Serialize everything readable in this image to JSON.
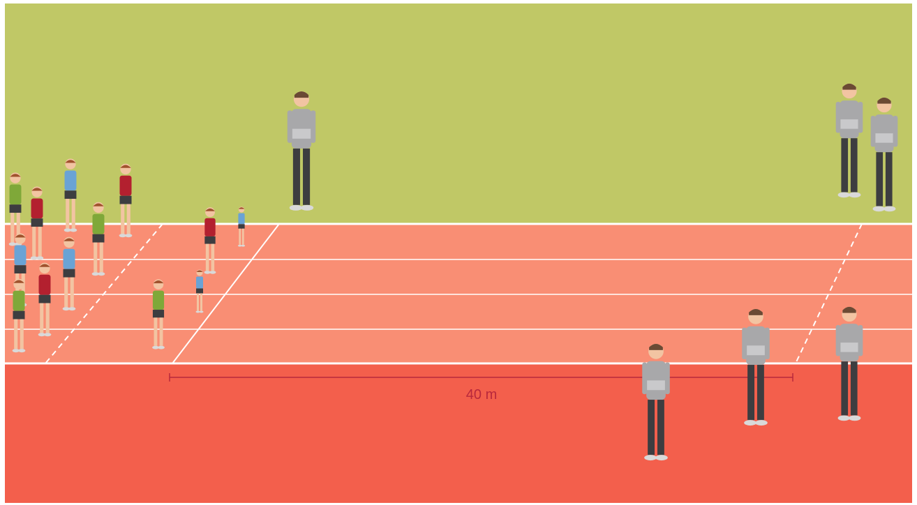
{
  "distance_label": "40 m"
}
